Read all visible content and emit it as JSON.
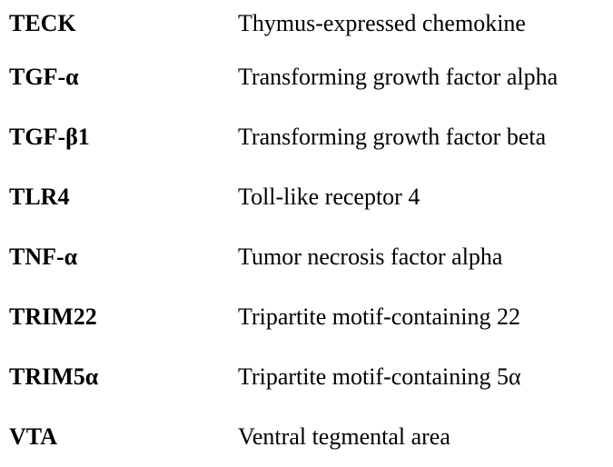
{
  "glossary": {
    "entries": [
      {
        "term": "TECK",
        "definition": "Thymus-expressed chemokine"
      },
      {
        "term": "TGF-α",
        "definition": "Transforming growth factor alpha"
      },
      {
        "term": "TGF-β1",
        "definition": "Transforming growth factor beta"
      },
      {
        "term": "TLR4",
        "definition": "Toll-like receptor 4"
      },
      {
        "term": "TNF-α",
        "definition": "Tumor necrosis factor alpha"
      },
      {
        "term": "TRIM22",
        "definition": "Tripartite motif-containing 22"
      },
      {
        "term": "TRIM5α",
        "definition": "Tripartite motif-containing 5α"
      },
      {
        "term": "VTA",
        "definition": "Ventral tegmental area"
      }
    ]
  }
}
